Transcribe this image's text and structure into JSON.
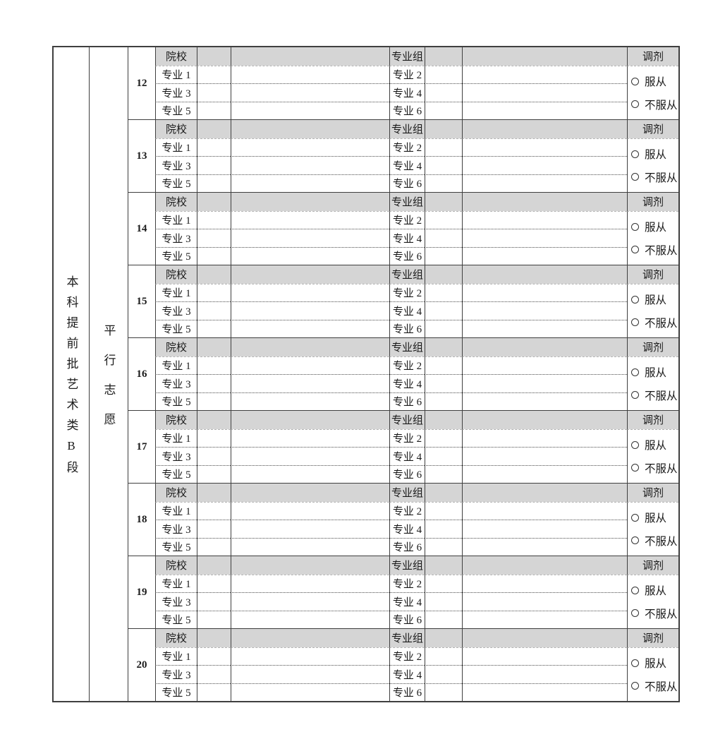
{
  "table": {
    "batch_label": "本科提前批艺术类B段",
    "mode_label": "平行志愿",
    "block_numbers": [
      "12",
      "13",
      "14",
      "15",
      "16",
      "17",
      "18",
      "19",
      "20"
    ],
    "labels": {
      "college": "院校",
      "major_group": "专业组",
      "adjustment": "调剂",
      "major_1": "专业 1",
      "major_2": "专业 2",
      "major_3": "专业 3",
      "major_4": "专业 4",
      "major_5": "专业 5",
      "major_6": "专业 6"
    },
    "adjustment_options": {
      "obey": "服从",
      "refuse": "不服从",
      "obey_selected": false,
      "refuse_selected": false
    },
    "inputs": {
      "college_code": "",
      "college_name": "",
      "major_group_code": "",
      "major_group_name": "",
      "major_code": "",
      "major_name": ""
    },
    "colors": {
      "header_fill": "#d5d5d5",
      "border": "#3f3f3f",
      "text": "#1b1b1b",
      "background": "#ffffff"
    }
  }
}
